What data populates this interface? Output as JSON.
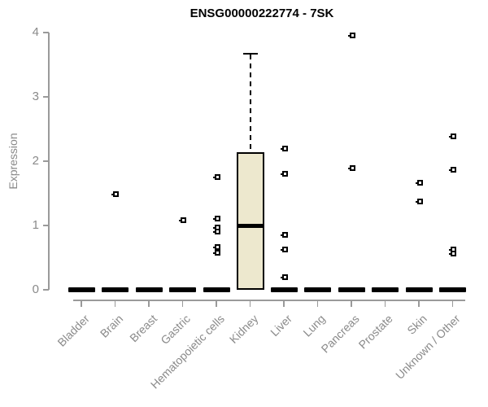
{
  "title": "ENSG00000222774 - 7SK",
  "chart_data": {
    "type": "boxplot",
    "title": "ENSG00000222774 - 7SK",
    "xlabel": "",
    "ylabel": "Expression",
    "ylim": [
      0,
      4
    ],
    "yticks": [
      0,
      1,
      2,
      3,
      4
    ],
    "grid": false,
    "legend": "none",
    "colors": {
      "box_fill": "#ede8ce",
      "box_border": "#000000",
      "collapsed_bar": "#000000",
      "axis": "#9a9a9a",
      "tick_label": "#8a8a8a",
      "title": "#000000"
    },
    "categories": [
      "Bladder",
      "Brain",
      "Breast",
      "Gastric",
      "Hematopoietic cells",
      "Kidney",
      "Liver",
      "Lung",
      "Pancreas",
      "Prostate",
      "Skin",
      "Unknown / Other"
    ],
    "series": [
      {
        "category": "Bladder",
        "box": {
          "low": 0,
          "q1": 0,
          "median": 0,
          "q3": 0,
          "high": 0
        },
        "outliers": []
      },
      {
        "category": "Brain",
        "box": {
          "low": 0,
          "q1": 0,
          "median": 0,
          "q3": 0,
          "high": 0
        },
        "outliers": [
          1.49
        ]
      },
      {
        "category": "Breast",
        "box": {
          "low": 0,
          "q1": 0,
          "median": 0,
          "q3": 0,
          "high": 0
        },
        "outliers": []
      },
      {
        "category": "Gastric",
        "box": {
          "low": 0,
          "q1": 0,
          "median": 0,
          "q3": 0,
          "high": 0
        },
        "outliers": [
          1.08
        ]
      },
      {
        "category": "Hematopoietic cells",
        "box": {
          "low": 0,
          "q1": 0,
          "median": 0,
          "q3": 0,
          "high": 0
        },
        "outliers": [
          1.75,
          1.11,
          0.97,
          0.9,
          0.67,
          0.58
        ]
      },
      {
        "category": "Kidney",
        "box": {
          "low": 0,
          "q1": 0,
          "median": 1.0,
          "q3": 2.14,
          "high": 3.67
        },
        "outliers": []
      },
      {
        "category": "Liver",
        "box": {
          "low": 0,
          "q1": 0,
          "median": 0,
          "q3": 0,
          "high": 0
        },
        "outliers": [
          2.2,
          1.81,
          0.86,
          0.63,
          0.19
        ]
      },
      {
        "category": "Lung",
        "box": {
          "low": 0,
          "q1": 0,
          "median": 0,
          "q3": 0,
          "high": 0
        },
        "outliers": []
      },
      {
        "category": "Pancreas",
        "box": {
          "low": 0,
          "q1": 0,
          "median": 0,
          "q3": 0,
          "high": 0
        },
        "outliers": [
          3.95,
          1.89
        ]
      },
      {
        "category": "Prostate",
        "box": {
          "low": 0,
          "q1": 0,
          "median": 0,
          "q3": 0,
          "high": 0
        },
        "outliers": []
      },
      {
        "category": "Skin",
        "box": {
          "low": 0,
          "q1": 0,
          "median": 0,
          "q3": 0,
          "high": 0
        },
        "outliers": [
          1.66,
          1.37
        ]
      },
      {
        "category": "Unknown / Other",
        "box": {
          "low": 0,
          "q1": 0,
          "median": 0,
          "q3": 0,
          "high": 0
        },
        "outliers": [
          2.38,
          1.87,
          0.63,
          0.56
        ]
      }
    ]
  }
}
